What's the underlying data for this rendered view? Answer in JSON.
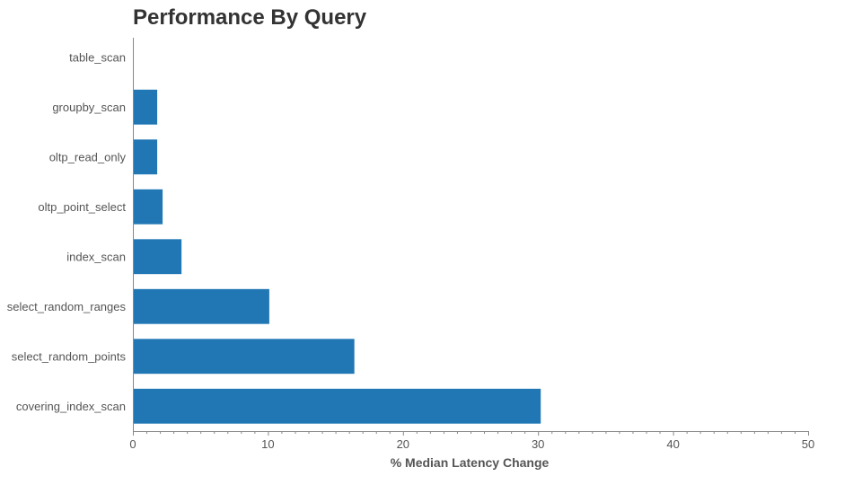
{
  "chart_data": {
    "type": "bar",
    "orientation": "horizontal",
    "title": "Performance By Query",
    "xlabel": "% Median Latency Change",
    "ylabel": "",
    "xlim": [
      0,
      50
    ],
    "xticks": [
      "0",
      "10",
      "20",
      "30",
      "40",
      "50"
    ],
    "categories": [
      "table_scan",
      "groupby_scan",
      "oltp_read_only",
      "oltp_point_select",
      "index_scan",
      "select_random_ranges",
      "select_random_points",
      "covering_index_scan"
    ],
    "values": [
      0,
      1.8,
      1.8,
      2.2,
      3.6,
      10.1,
      16.4,
      30.2
    ],
    "grid": false,
    "bar_color": "#2077b4"
  }
}
